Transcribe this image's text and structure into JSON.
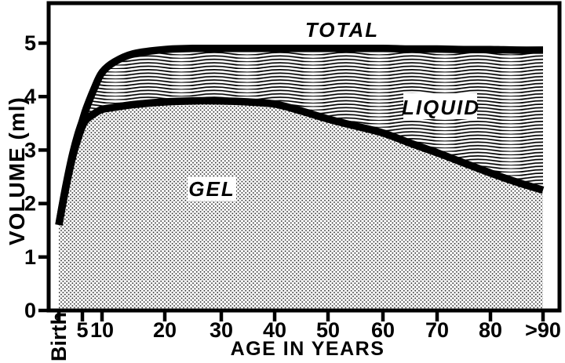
{
  "chart_data": {
    "type": "area",
    "title": "",
    "xlabel": "AGE IN YEARS",
    "ylabel": "VOLUME (ml)",
    "x_tick_labels": [
      "Birth",
      "5",
      "10",
      "20",
      "30",
      "40",
      "50",
      "60",
      "70",
      "80",
      ">90"
    ],
    "x_tick_ages": [
      0,
      5,
      10,
      20,
      30,
      40,
      50,
      60,
      70,
      80,
      90
    ],
    "y_ticks": [
      "0",
      "1",
      "2",
      "3",
      "4",
      "5"
    ],
    "y_tick_values": [
      0,
      1,
      2,
      3,
      4,
      5
    ],
    "xlim": [
      0,
      93
    ],
    "ylim": [
      0,
      5.7
    ],
    "grid": false,
    "legend_position": "labels drawn inside regions",
    "series": [
      {
        "name": "TOTAL",
        "x": [
          0,
          1,
          2,
          3,
          4,
          5,
          6,
          8,
          10,
          12,
          15,
          20,
          25,
          30,
          35,
          40,
          45,
          50,
          55,
          60,
          65,
          70,
          75,
          80,
          85,
          90
        ],
        "values": [
          1.6,
          2.1,
          2.55,
          2.95,
          3.28,
          3.55,
          3.78,
          4.15,
          4.45,
          4.65,
          4.8,
          4.88,
          4.9,
          4.9,
          4.9,
          4.9,
          4.9,
          4.9,
          4.9,
          4.9,
          4.89,
          4.89,
          4.88,
          4.88,
          4.87,
          4.87
        ]
      },
      {
        "name": "GEL",
        "x": [
          0,
          1,
          2,
          3,
          4,
          5,
          6,
          8,
          10,
          12,
          15,
          20,
          25,
          30,
          35,
          40,
          45,
          50,
          55,
          60,
          65,
          70,
          75,
          80,
          85,
          90
        ],
        "values": [
          1.6,
          2.08,
          2.52,
          2.9,
          3.2,
          3.45,
          3.57,
          3.68,
          3.76,
          3.8,
          3.85,
          3.9,
          3.92,
          3.92,
          3.9,
          3.86,
          3.73,
          3.58,
          3.45,
          3.32,
          3.13,
          2.95,
          2.76,
          2.57,
          2.4,
          2.25
        ]
      }
    ],
    "regions": [
      {
        "label": "LIQUID",
        "between": [
          "GEL",
          "TOTAL"
        ],
        "pattern": "wavy-horizontal-lines"
      },
      {
        "label": "GEL",
        "below": "GEL",
        "pattern": "halftone-dots"
      }
    ],
    "annotations": [
      {
        "text": "TOTAL",
        "age": 52,
        "ml": 5.25
      },
      {
        "text": "LIQUID",
        "age": 70,
        "ml": 3.8
      },
      {
        "text": "GEL",
        "age": 28,
        "ml": 2.25
      }
    ]
  },
  "colors": {
    "ink": "#000000",
    "background": "#ffffff"
  }
}
